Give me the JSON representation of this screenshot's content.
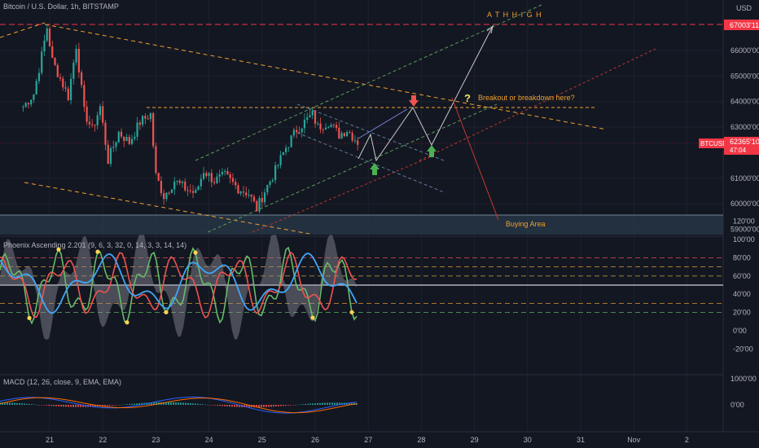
{
  "chart_data": {
    "type": "line",
    "price_panel": {
      "title": "Bitcoin / U.S. Dollar, 1h, BITSTAMP",
      "currency": "USD",
      "y_ticks": [
        "66000'00",
        "65000'00",
        "64000'00",
        "63000'00",
        "61000'00",
        "60000'00",
        "59000'00"
      ],
      "ath_price_label": "67003'11",
      "last_price_symbol": "BTCUSD",
      "last_price_value": "62365'10",
      "last_price_countdown": "47:04",
      "ath_level": 67003.11,
      "last_price_level": 62365.1,
      "range_top_level": 63750,
      "buying_zone": [
        58700,
        59600
      ],
      "annotation_ath": "A T H   H I G H",
      "annotation_question": "Breakout or breakdown here?",
      "annotation_buy": "Buying Area",
      "question_glyph": "?",
      "price_path": [
        [
          20.5,
          63800
        ],
        [
          20.7,
          64300
        ],
        [
          20.85,
          65800
        ],
        [
          20.95,
          66900
        ],
        [
          21.05,
          65600
        ],
        [
          21.2,
          64900
        ],
        [
          21.35,
          64200
        ],
        [
          21.5,
          66200
        ],
        [
          21.65,
          63600
        ],
        [
          21.8,
          62900
        ],
        [
          21.95,
          63800
        ],
        [
          22.1,
          61700
        ],
        [
          22.3,
          62800
        ],
        [
          22.5,
          62400
        ],
        [
          22.7,
          63200
        ],
        [
          22.9,
          63500
        ],
        [
          23.0,
          61100
        ],
        [
          23.15,
          60300
        ],
        [
          23.35,
          60900
        ],
        [
          23.55,
          60600
        ],
        [
          23.75,
          60400
        ],
        [
          23.9,
          61300
        ],
        [
          24.1,
          60900
        ],
        [
          24.3,
          61100
        ],
        [
          24.55,
          60600
        ],
        [
          24.75,
          60400
        ],
        [
          24.9,
          59800
        ],
        [
          25.05,
          60500
        ],
        [
          25.25,
          61300
        ],
        [
          25.45,
          62200
        ],
        [
          25.65,
          62900
        ],
        [
          25.8,
          63200
        ],
        [
          25.95,
          63500
        ],
        [
          26.05,
          63000
        ],
        [
          26.25,
          63200
        ],
        [
          26.45,
          62700
        ],
        [
          26.6,
          62900
        ],
        [
          26.85,
          62300
        ]
      ]
    },
    "phoenix_panel": {
      "title": "Phoenix Ascending 2.201 (9, 6, 3, 32, 0, 14, 3, 3, 14, 14)",
      "y_ticks": [
        "120'00",
        "100'00",
        "80'00",
        "60'00",
        "40'00",
        "20'00",
        "0'00",
        "-20'00"
      ],
      "levels": [
        80,
        70,
        60,
        50,
        30,
        20
      ]
    },
    "macd_panel": {
      "title": "MACD (12, 26, close, 9, EMA, EMA)",
      "y_ticks": [
        "1000'00",
        "0'00"
      ]
    },
    "x_ticks": [
      "21",
      "22",
      "23",
      "24",
      "25",
      "26",
      "27",
      "28",
      "29",
      "30",
      "31",
      "Nov",
      "2"
    ],
    "x_tick_values": [
      21,
      22,
      23,
      24,
      25,
      26,
      27,
      28,
      29,
      30,
      31,
      32,
      33
    ],
    "x_range": [
      20.1,
      34.3
    ],
    "colors": {
      "background": "#131722",
      "grid": "#1e222d",
      "up": "#26a69a",
      "down": "#ef5350",
      "orange": "#f0a030",
      "ath_line": "#f23645",
      "green_dash": "#5b9a5b",
      "price_tag": "#f23645",
      "zone": "#2a3a4a"
    }
  }
}
